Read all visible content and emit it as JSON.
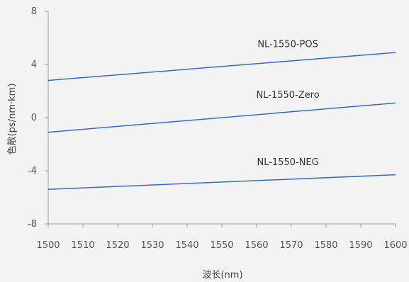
{
  "chart_data": {
    "type": "line",
    "title": "",
    "xlabel": "波长(nm)",
    "ylabel": "色散(ps/nm·km)",
    "xlim": [
      1500,
      1600
    ],
    "ylim": [
      -8,
      8
    ],
    "x_ticks": [
      1500,
      1510,
      1520,
      1530,
      1540,
      1550,
      1560,
      1570,
      1580,
      1590,
      1600
    ],
    "y_ticks": [
      8,
      4,
      0,
      -4,
      -8
    ],
    "grid": false,
    "legend": "none",
    "series": [
      {
        "name": "NL-1550-POS",
        "x": [
          1500,
          1600
        ],
        "y": [
          2.8,
          4.9
        ],
        "color": "#3a6bbf"
      },
      {
        "name": "NL-1550-Zero",
        "x": [
          1500,
          1600
        ],
        "y": [
          -1.1,
          1.1
        ],
        "color": "#3a6bbf"
      },
      {
        "name": "NL-1550-NEG",
        "x": [
          1500,
          1600
        ],
        "y": [
          -5.4,
          -4.3
        ],
        "color": "#3a6bbf"
      }
    ]
  }
}
